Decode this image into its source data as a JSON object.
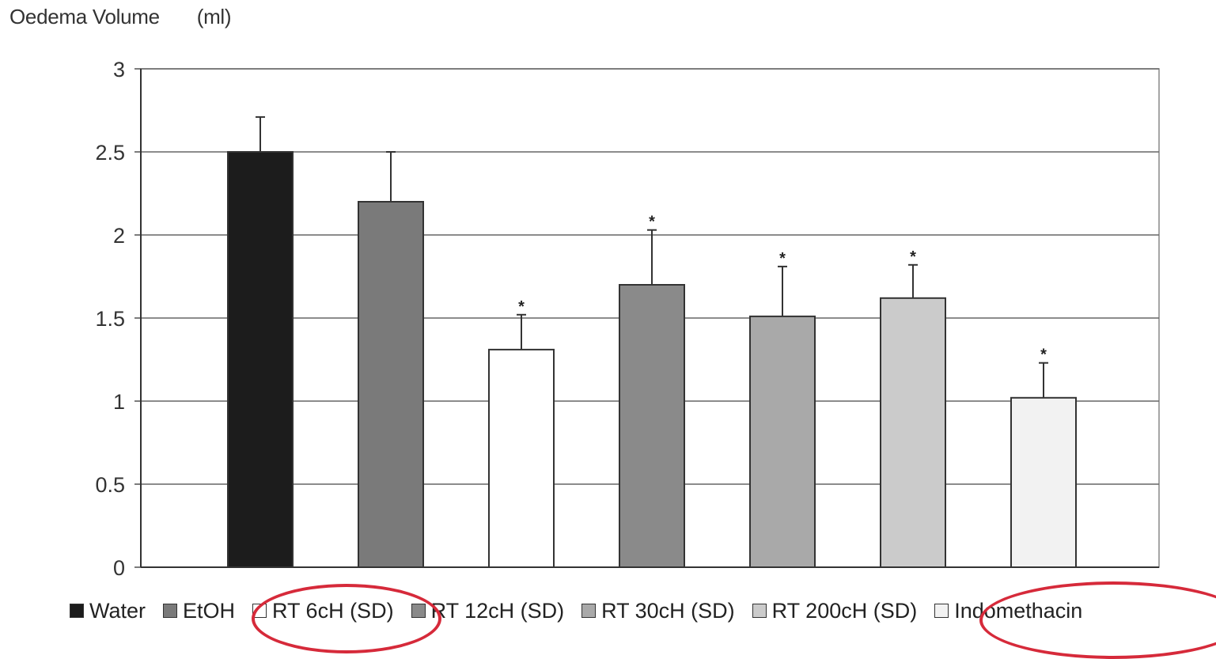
{
  "y_axis_title": "Oedema Volume",
  "y_axis_unit": "(ml)",
  "chart_data": {
    "type": "bar",
    "title": "",
    "xlabel": "",
    "ylabel": "Oedema Volume (ml)",
    "ylim": [
      0,
      3
    ],
    "yticks": [
      {
        "value": 0,
        "label": "0"
      },
      {
        "value": 0.5,
        "label": "0.5"
      },
      {
        "value": 1,
        "label": "1"
      },
      {
        "value": 1.5,
        "label": "1.5"
      },
      {
        "value": 2,
        "label": "2"
      },
      {
        "value": 2.5,
        "label": "2.5"
      },
      {
        "value": 3,
        "label": "3"
      }
    ],
    "grid": true,
    "legend_position": "bottom",
    "categories": [
      "Water",
      "EtOH",
      "RT 6cH (SD)",
      "RT 12cH (SD)",
      "RT 30cH (SD)",
      "RT 200cH (SD)",
      "Indomethacin"
    ],
    "values": [
      2.5,
      2.2,
      1.31,
      1.7,
      1.51,
      1.62,
      1.02
    ],
    "error": [
      0.21,
      0.3,
      0.21,
      0.33,
      0.3,
      0.2,
      0.21
    ],
    "significance": [
      "",
      "",
      "*",
      "*",
      "*",
      "*",
      "*"
    ],
    "colors": [
      "#1c1c1c",
      "#7a7a7a",
      "#ffffff",
      "#8a8a8a",
      "#a9a9a9",
      "#cbcbcb",
      "#f2f2f2"
    ]
  }
}
